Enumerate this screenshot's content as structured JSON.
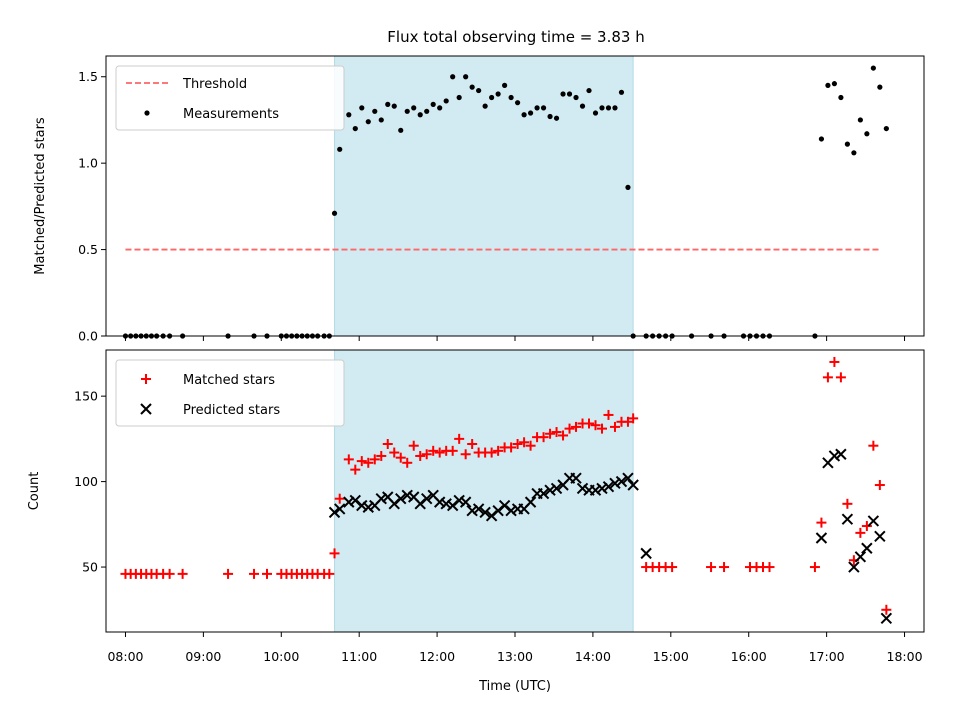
{
  "chart_data": [
    {
      "type": "scatter",
      "title": "Flux total observing time = 3.83 h",
      "ylabel": "Matched/Predicted stars",
      "xlabel": "",
      "ylim": [
        0,
        1.62
      ],
      "xlim": [
        "07:45",
        "18:15"
      ],
      "yticks": [
        "0.0",
        "0.5",
        "1.0",
        "1.5"
      ],
      "shaded_span": {
        "from": "10:41",
        "to": "14:31",
        "color": "#add8e6"
      },
      "legend": {
        "location": "top-left",
        "entries": [
          "Threshold",
          "Measurements"
        ]
      },
      "threshold": {
        "name": "Threshold",
        "value": 0.5,
        "x_from": "08:00",
        "x_to": "17:40",
        "color": "#ff6666"
      },
      "series": [
        {
          "name": "Measurements",
          "marker": "dot",
          "color": "#000000",
          "x": [
            "08:00",
            "08:04",
            "08:08",
            "08:12",
            "08:16",
            "08:20",
            "08:24",
            "08:29",
            "08:34",
            "08:44",
            "09:19",
            "09:39",
            "09:49",
            "10:00",
            "10:04",
            "10:08",
            "10:12",
            "10:16",
            "10:20",
            "10:24",
            "10:28",
            "10:33",
            "10:37",
            "10:41",
            "10:45",
            "10:52",
            "10:57",
            "11:02",
            "11:07",
            "11:12",
            "11:17",
            "11:22",
            "11:27",
            "11:32",
            "11:37",
            "11:42",
            "11:47",
            "11:52",
            "11:57",
            "12:02",
            "12:07",
            "12:12",
            "12:17",
            "12:22",
            "12:27",
            "12:32",
            "12:37",
            "12:42",
            "12:47",
            "12:52",
            "12:57",
            "13:02",
            "13:07",
            "13:12",
            "13:17",
            "13:22",
            "13:27",
            "13:32",
            "13:37",
            "13:42",
            "13:47",
            "13:52",
            "13:57",
            "14:02",
            "14:07",
            "14:12",
            "14:17",
            "14:22",
            "14:27",
            "14:31",
            "14:41",
            "14:46",
            "14:51",
            "14:56",
            "15:01",
            "15:16",
            "15:31",
            "15:41",
            "15:56",
            "16:01",
            "16:06",
            "16:11",
            "16:16",
            "16:51",
            "16:56",
            "17:01",
            "17:06",
            "17:11",
            "17:16",
            "17:21",
            "17:26",
            "17:31",
            "17:36",
            "17:41",
            "17:46"
          ],
          "y": [
            0,
            0,
            0,
            0,
            0,
            0,
            0,
            0,
            0,
            0,
            0,
            0,
            0,
            0,
            0,
            0,
            0,
            0,
            0,
            0,
            0,
            0,
            0,
            0.71,
            1.08,
            1.28,
            1.2,
            1.32,
            1.24,
            1.3,
            1.25,
            1.34,
            1.33,
            1.19,
            1.3,
            1.32,
            1.28,
            1.3,
            1.34,
            1.32,
            1.36,
            1.5,
            1.38,
            1.5,
            1.44,
            1.42,
            1.33,
            1.38,
            1.4,
            1.45,
            1.38,
            1.35,
            1.28,
            1.29,
            1.32,
            1.32,
            1.27,
            1.26,
            1.4,
            1.4,
            1.38,
            1.33,
            1.42,
            1.29,
            1.32,
            1.32,
            1.32,
            1.41,
            0.86,
            0,
            0,
            0,
            0,
            0,
            0,
            0,
            0,
            0,
            0,
            0,
            0,
            0,
            0,
            0,
            1.14,
            1.45,
            1.46,
            1.38,
            1.11,
            1.06,
            1.25,
            1.17,
            1.55,
            1.44,
            1.2
          ]
        }
      ]
    },
    {
      "type": "scatter",
      "title": "",
      "ylabel": "Count",
      "xlabel": "Time (UTC)",
      "ylim": [
        12,
        177
      ],
      "xlim": [
        "07:45",
        "18:15"
      ],
      "yticks": [
        "50",
        "100",
        "150"
      ],
      "xticks": [
        "08:00",
        "09:00",
        "10:00",
        "11:00",
        "12:00",
        "13:00",
        "14:00",
        "15:00",
        "16:00",
        "17:00",
        "18:00"
      ],
      "shaded_span": {
        "from": "10:41",
        "to": "14:31",
        "color": "#add8e6"
      },
      "legend": {
        "location": "top-left",
        "entries": [
          "Matched stars",
          "Predicted stars"
        ]
      },
      "series": [
        {
          "name": "Matched stars",
          "marker": "plus",
          "color": "#ff0000",
          "x": [
            "08:00",
            "08:04",
            "08:08",
            "08:12",
            "08:16",
            "08:20",
            "08:24",
            "08:29",
            "08:34",
            "08:44",
            "09:19",
            "09:39",
            "09:49",
            "10:00",
            "10:04",
            "10:08",
            "10:12",
            "10:16",
            "10:20",
            "10:24",
            "10:28",
            "10:33",
            "10:37",
            "10:41",
            "10:45",
            "10:52",
            "10:57",
            "11:02",
            "11:07",
            "11:12",
            "11:17",
            "11:22",
            "11:27",
            "11:32",
            "11:37",
            "11:42",
            "11:47",
            "11:52",
            "11:57",
            "12:02",
            "12:07",
            "12:12",
            "12:17",
            "12:22",
            "12:27",
            "12:32",
            "12:37",
            "12:42",
            "12:47",
            "12:52",
            "12:57",
            "13:02",
            "13:07",
            "13:12",
            "13:17",
            "13:22",
            "13:27",
            "13:32",
            "13:37",
            "13:42",
            "13:47",
            "13:52",
            "13:57",
            "14:02",
            "14:07",
            "14:12",
            "14:17",
            "14:22",
            "14:27",
            "14:31",
            "14:41",
            "14:46",
            "14:51",
            "14:56",
            "15:01",
            "15:31",
            "15:41",
            "16:01",
            "16:06",
            "16:11",
            "16:16",
            "16:51",
            "16:56",
            "17:01",
            "17:06",
            "17:11",
            "17:16",
            "17:21",
            "17:26",
            "17:31",
            "17:36",
            "17:41",
            "17:46"
          ],
          "y": [
            46,
            46,
            46,
            46,
            46,
            46,
            46,
            46,
            46,
            46,
            46,
            46,
            46,
            46,
            46,
            46,
            46,
            46,
            46,
            46,
            46,
            46,
            46,
            58,
            90,
            113,
            107,
            112,
            111,
            113,
            115,
            122,
            117,
            114,
            111,
            121,
            115,
            116,
            118,
            117,
            118,
            118,
            125,
            116,
            122,
            117,
            117,
            117,
            118,
            120,
            120,
            122,
            123,
            121,
            126,
            126,
            128,
            129,
            127,
            131,
            132,
            134,
            134,
            133,
            131,
            139,
            132,
            135,
            135,
            137,
            50,
            50,
            50,
            50,
            50,
            50,
            50,
            50,
            50,
            50,
            50,
            50,
            76,
            161,
            170,
            161,
            87,
            54,
            70,
            74,
            121,
            98,
            25
          ]
        },
        {
          "name": "Predicted stars",
          "marker": "x",
          "color": "#000000",
          "x": [
            "10:41",
            "10:45",
            "10:52",
            "10:57",
            "11:02",
            "11:07",
            "11:12",
            "11:17",
            "11:22",
            "11:27",
            "11:32",
            "11:37",
            "11:42",
            "11:47",
            "11:52",
            "11:57",
            "12:02",
            "12:07",
            "12:12",
            "12:17",
            "12:22",
            "12:27",
            "12:32",
            "12:37",
            "12:42",
            "12:47",
            "12:52",
            "12:57",
            "13:02",
            "13:07",
            "13:12",
            "13:17",
            "13:22",
            "13:27",
            "13:32",
            "13:37",
            "13:42",
            "13:47",
            "13:52",
            "13:57",
            "14:02",
            "14:07",
            "14:12",
            "14:17",
            "14:22",
            "14:27",
            "14:31",
            "14:41",
            "16:56",
            "17:01",
            "17:06",
            "17:11",
            "17:16",
            "17:21",
            "17:26",
            "17:31",
            "17:36",
            "17:41",
            "17:46"
          ],
          "y": [
            82,
            84,
            88,
            89,
            86,
            85,
            86,
            90,
            91,
            87,
            90,
            92,
            91,
            87,
            90,
            92,
            88,
            87,
            86,
            89,
            88,
            83,
            84,
            82,
            80,
            83,
            86,
            83,
            84,
            84,
            88,
            93,
            93,
            95,
            96,
            98,
            102,
            102,
            96,
            95,
            95,
            96,
            97,
            99,
            100,
            102,
            98,
            58,
            67,
            111,
            115,
            116,
            78,
            50,
            56,
            61,
            77,
            68,
            20
          ]
        }
      ]
    }
  ]
}
